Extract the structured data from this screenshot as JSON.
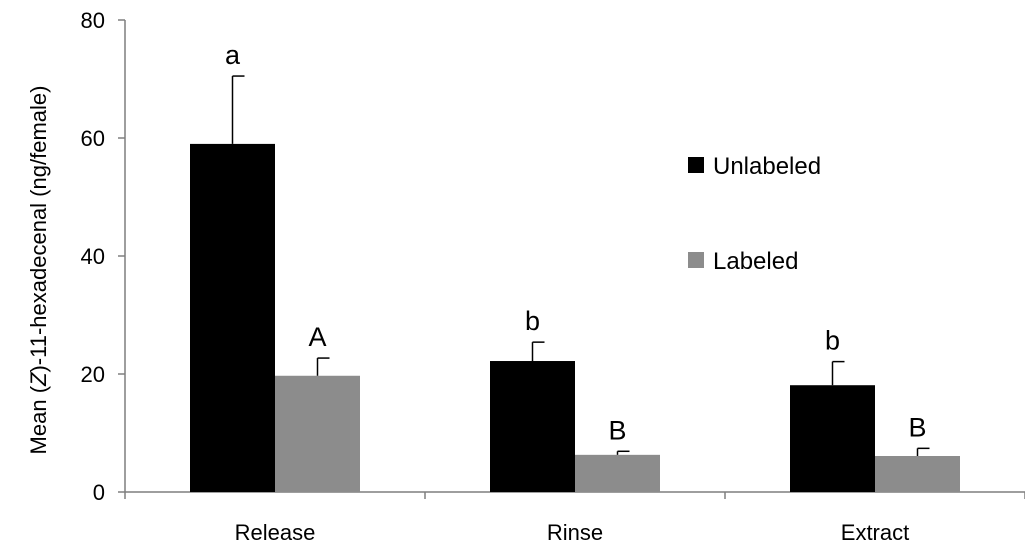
{
  "chart_data": {
    "type": "bar",
    "ylabel_prefix": "Mean (",
    "ylabel_italic": "Z",
    "ylabel_suffix": ")-11-hexadecenal (ng/female)",
    "ylim": [
      0,
      80
    ],
    "yticks": [
      "0",
      "20",
      "40",
      "60",
      "80"
    ],
    "categories": [
      "Release",
      "Rinse",
      "Extract"
    ],
    "series": [
      {
        "name": "Unlabeled",
        "color": "#000000",
        "values": [
          59,
          22.2,
          18.1
        ],
        "errors": [
          11.5,
          3.2,
          4.0
        ],
        "sig_labels": [
          "a",
          "b",
          "b"
        ]
      },
      {
        "name": "Labeled",
        "color": "#8c8c8c",
        "values": [
          19.7,
          6.3,
          6.1
        ],
        "errors": [
          3.0,
          0.6,
          1.3
        ],
        "sig_labels": [
          "A",
          "B",
          "B"
        ]
      }
    ],
    "legend": "right",
    "grid": false
  }
}
